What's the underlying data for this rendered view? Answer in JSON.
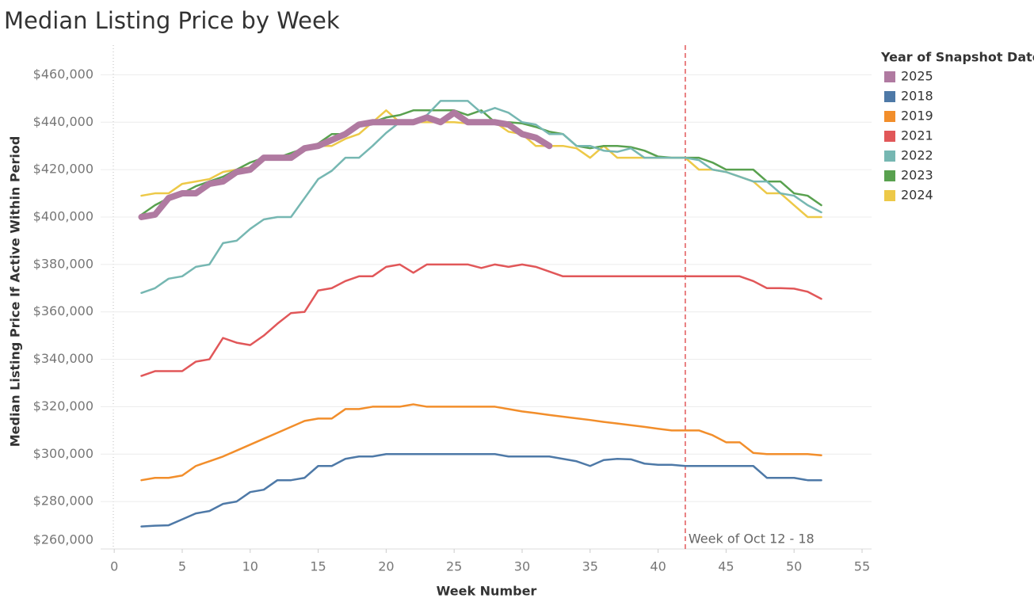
{
  "chart_data": {
    "type": "line",
    "title": "Median Listing Price by Week",
    "x_label": "Week Number",
    "y_label": "Median Listing Price If Active Within Period",
    "legend_title": "Year of Snapshot Date",
    "legend_position": "right",
    "grid": true,
    "xlim": [
      -1,
      55.7
    ],
    "xticks": [
      0,
      5,
      10,
      15,
      20,
      25,
      30,
      35,
      40,
      45,
      50,
      55
    ],
    "ylim": [
      260000,
      472500
    ],
    "yticks": [
      {
        "value": 260000,
        "label": "$260,000"
      },
      {
        "value": 280000,
        "label": "$280,000"
      },
      {
        "value": 300000,
        "label": "$300,000"
      },
      {
        "value": 320000,
        "label": "$320,000"
      },
      {
        "value": 340000,
        "label": "$340,000"
      },
      {
        "value": 360000,
        "label": "$360,000"
      },
      {
        "value": 380000,
        "label": "$380,000"
      },
      {
        "value": 400000,
        "label": "$400,000"
      },
      {
        "value": 420000,
        "label": "$420,000"
      },
      {
        "value": 440000,
        "label": "$440,000"
      },
      {
        "value": 460000,
        "label": "$460,000"
      }
    ],
    "annotations": [
      {
        "x": 42,
        "label": "Week of Oct 12 - 18",
        "color": "#e15759"
      }
    ],
    "x": [
      2,
      3,
      4,
      5,
      6,
      7,
      8,
      9,
      10,
      11,
      12,
      13,
      14,
      15,
      16,
      17,
      18,
      19,
      20,
      21,
      22,
      23,
      24,
      25,
      26,
      27,
      28,
      29,
      30,
      31,
      32,
      33,
      34,
      35,
      36,
      37,
      38,
      39,
      40,
      41,
      42,
      43,
      44,
      45,
      46,
      47,
      48,
      49,
      50,
      51,
      52
    ],
    "series": [
      {
        "name": "2025",
        "color": "#b07aa1",
        "width": 8,
        "values": [
          400000,
          401000,
          408000,
          410000,
          410000,
          414000,
          415000,
          419000,
          420000,
          425000,
          425000,
          425000,
          429000,
          430000,
          432500,
          435000,
          439000,
          440000,
          440000,
          440000,
          440000,
          442000,
          440000,
          444000,
          440000,
          440000,
          440000,
          439000,
          435000,
          433500,
          430000,
          null,
          null,
          null,
          null,
          null,
          null,
          null,
          null,
          null,
          null,
          null,
          null,
          null,
          null,
          null,
          null,
          null,
          null,
          null,
          null
        ]
      },
      {
        "name": "2018",
        "color": "#4e79a7",
        "width": 2.5,
        "values": [
          269500,
          269800,
          270000,
          272500,
          275000,
          276000,
          279000,
          280000,
          284000,
          285000,
          289000,
          289000,
          290000,
          295000,
          295000,
          298000,
          299000,
          299000,
          300000,
          300000,
          300000,
          300000,
          300000,
          300000,
          300000,
          300000,
          300000,
          299000,
          299000,
          299000,
          299000,
          298000,
          297000,
          295000,
          297500,
          298000,
          297800,
          296000,
          295500,
          295500,
          295000,
          295000,
          295000,
          295000,
          295000,
          295000,
          290000,
          290000,
          290000,
          289000,
          289000
        ]
      },
      {
        "name": "2019",
        "color": "#f28e2b",
        "width": 2.5,
        "values": [
          289000,
          290000,
          290000,
          291000,
          295000,
          297000,
          299000,
          301500,
          304000,
          306500,
          309000,
          311500,
          314000,
          315000,
          315000,
          319000,
          319000,
          320000,
          320000,
          320000,
          321000,
          320000,
          320000,
          320000,
          320000,
          320000,
          320000,
          319000,
          318000,
          317300,
          316500,
          315800,
          315100,
          314400,
          313600,
          312900,
          312200,
          311500,
          310700,
          310000,
          310000,
          310000,
          308000,
          305000,
          305000,
          300500,
          300000,
          300000,
          300000,
          300000,
          299500
        ]
      },
      {
        "name": "2021",
        "color": "#e15759",
        "width": 2.5,
        "values": [
          333000,
          335000,
          335000,
          335000,
          339000,
          340000,
          349000,
          347000,
          346000,
          350000,
          355000,
          359500,
          360000,
          369000,
          370000,
          373000,
          375000,
          375000,
          379000,
          380000,
          376500,
          380000,
          380000,
          380000,
          380000,
          378500,
          380000,
          379000,
          380000,
          379000,
          377000,
          375000,
          375000,
          375000,
          375000,
          375000,
          375000,
          375000,
          375000,
          375000,
          375000,
          375000,
          375000,
          375000,
          375000,
          373000,
          370000,
          370000,
          369800,
          368500,
          365500
        ]
      },
      {
        "name": "2022",
        "color": "#76b7b2",
        "width": 2.5,
        "values": [
          368000,
          370000,
          374000,
          375000,
          379000,
          380000,
          389000,
          390000,
          395000,
          399000,
          400000,
          400000,
          408000,
          416000,
          419500,
          425000,
          425000,
          430000,
          435500,
          440000,
          440000,
          443000,
          449000,
          449000,
          449000,
          444000,
          446000,
          444000,
          440000,
          439000,
          435000,
          435000,
          430000,
          430000,
          428000,
          427500,
          429000,
          425000,
          425000,
          425000,
          425000,
          424000,
          420000,
          419000,
          417000,
          415000,
          415000,
          410000,
          409000,
          405000,
          402000
        ]
      },
      {
        "name": "2023",
        "color": "#59a14f",
        "width": 2.5,
        "values": [
          401000,
          405000,
          408000,
          410000,
          413000,
          415000,
          417000,
          420000,
          423000,
          425000,
          425000,
          427000,
          429000,
          431000,
          435000,
          435000,
          439000,
          440000,
          442000,
          443000,
          445000,
          445000,
          445000,
          445000,
          443000,
          445000,
          440000,
          440000,
          439500,
          438000,
          436000,
          435000,
          430000,
          429000,
          430000,
          430000,
          429500,
          428000,
          425500,
          425000,
          425000,
          425000,
          423000,
          420000,
          420000,
          420000,
          415000,
          415000,
          410000,
          409000,
          405000
        ]
      },
      {
        "name": "2024",
        "color": "#edc948",
        "width": 2.5,
        "values": [
          409000,
          410000,
          410000,
          414000,
          415000,
          416000,
          419000,
          420000,
          421000,
          425000,
          425000,
          425000,
          428000,
          430000,
          430000,
          433000,
          435000,
          440000,
          445000,
          440000,
          440000,
          440000,
          440000,
          440000,
          439500,
          440000,
          440000,
          436000,
          435000,
          430000,
          430000,
          430000,
          429000,
          425000,
          430000,
          425000,
          425000,
          425000,
          425000,
          425000,
          425000,
          420000,
          420000,
          419000,
          417000,
          415000,
          410000,
          410000,
          405000,
          400000,
          400000
        ]
      }
    ]
  }
}
